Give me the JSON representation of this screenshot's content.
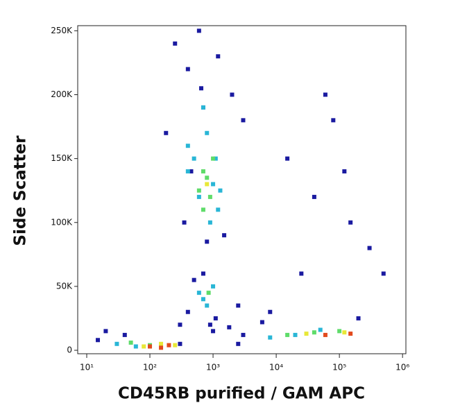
{
  "chart_data": {
    "type": "scatter",
    "x_label": "CD45RB purified / GAM APC",
    "y_label": "Side Scatter",
    "xscale": "log",
    "xlim": [
      7.2,
      1130000
    ],
    "ylim": [
      -2700,
      254000
    ],
    "xticks": [
      {
        "value": 10,
        "label": "10¹"
      },
      {
        "value": 100,
        "label": "10²"
      },
      {
        "value": 1000,
        "label": "10³"
      },
      {
        "value": 10000,
        "label": "10⁴"
      },
      {
        "value": 100000,
        "label": "10⁵"
      },
      {
        "value": 1000000,
        "label": "10⁶"
      }
    ],
    "yticks": [
      0,
      {
        "value": 50000,
        "label": "50K"
      },
      {
        "value": 100000,
        "label": "100K"
      },
      {
        "value": 150000,
        "label": "150K"
      },
      {
        "value": 200000,
        "label": "200K"
      },
      {
        "value": 250000,
        "label": "250K"
      }
    ],
    "series": [
      {
        "color": "#1a1aa0",
        "x": [
          250,
          400,
          600,
          1200,
          2000,
          3000,
          180,
          350,
          800,
          1500,
          700,
          1100,
          500,
          2500,
          300,
          900,
          1800,
          450,
          650,
          15000,
          40000,
          80000,
          150000,
          300000,
          25000,
          60000,
          120000,
          8000,
          200000,
          500000,
          20,
          40,
          15,
          300,
          2500,
          6000,
          400,
          1000,
          3000,
          700
        ],
        "y": [
          240000,
          220000,
          250000,
          230000,
          200000,
          180000,
          170000,
          100000,
          85000,
          90000,
          60000,
          25000,
          55000,
          35000,
          20000,
          20000,
          18000,
          140000,
          205000,
          150000,
          120000,
          180000,
          100000,
          80000,
          60000,
          200000,
          140000,
          30000,
          25000,
          60000,
          15000,
          12000,
          8000,
          5000,
          5000,
          22000,
          30000,
          15000,
          12000,
          190000
        ]
      },
      {
        "color": "#29b6d6",
        "x": [
          500,
          800,
          1000,
          600,
          1200,
          700,
          900,
          400,
          1100,
          600,
          800,
          1000,
          700,
          30,
          60,
          8000,
          20000,
          50000,
          400,
          1300
        ],
        "y": [
          150000,
          170000,
          130000,
          120000,
          110000,
          190000,
          100000,
          140000,
          150000,
          45000,
          35000,
          50000,
          40000,
          5000,
          3000,
          10000,
          12000,
          16000,
          160000,
          125000
        ]
      },
      {
        "color": "#5fdc6a",
        "x": [
          700,
          900,
          800,
          600,
          1000,
          50,
          100,
          15000,
          40000,
          100000,
          850,
          700
        ],
        "y": [
          140000,
          120000,
          135000,
          125000,
          150000,
          6000,
          4000,
          12000,
          14000,
          15000,
          45000,
          110000
        ]
      },
      {
        "color": "#e8e838",
        "x": [
          80,
          150,
          250,
          30000,
          120000,
          800
        ],
        "y": [
          3000,
          5000,
          4000,
          13000,
          14000,
          130000
        ]
      },
      {
        "color": "#e24a1e",
        "x": [
          100,
          150,
          200,
          60000,
          150000
        ],
        "y": [
          3000,
          2000,
          4000,
          12000,
          13000
        ]
      }
    ]
  }
}
